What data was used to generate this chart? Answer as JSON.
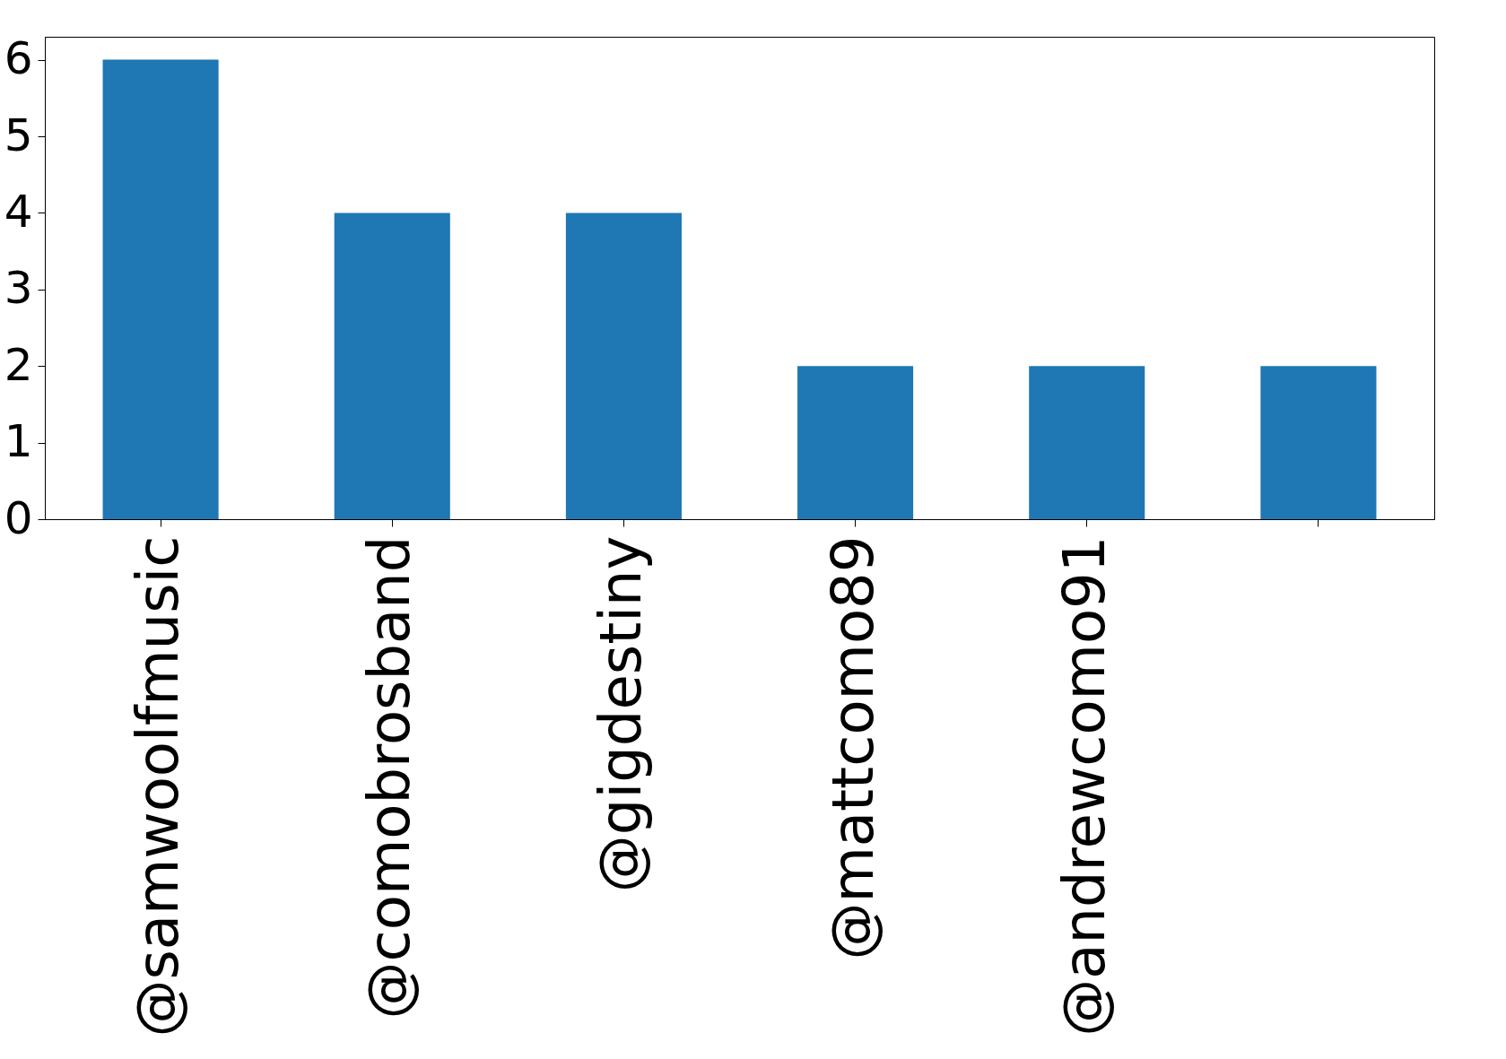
{
  "chart_data": {
    "type": "bar",
    "categories": [
      "@samwoolfmusic",
      "@comobrosband",
      "@gigdestiny",
      "@mattcomo89",
      "@andrewcomo91",
      null
    ],
    "values": [
      6,
      4,
      4,
      2,
      2,
      2
    ],
    "color": "#1f77b4",
    "ylim": [
      0,
      6.3
    ],
    "yticks": [
      0,
      1,
      2,
      3,
      4,
      5,
      6
    ],
    "grid": false
  }
}
